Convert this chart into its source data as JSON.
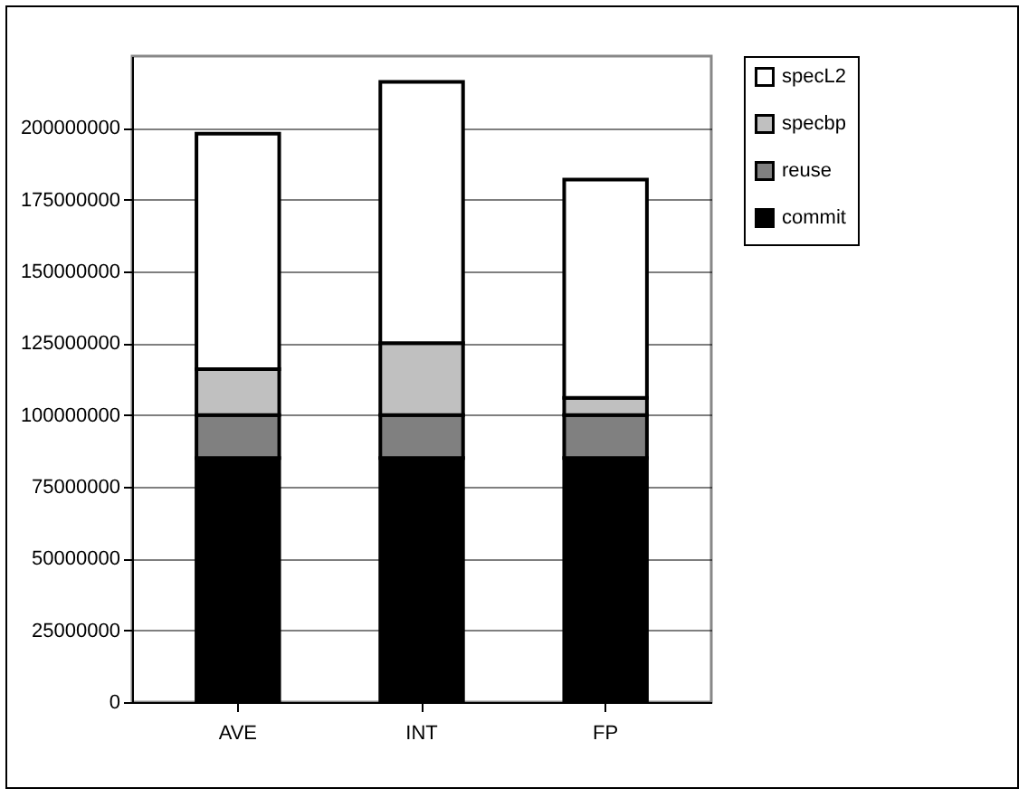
{
  "chart_data": {
    "type": "bar",
    "stacked": true,
    "categories": [
      "AVE",
      "INT",
      "FP"
    ],
    "series": [
      {
        "name": "commit",
        "color": "#000000",
        "values": [
          85000000,
          85000000,
          85000000
        ]
      },
      {
        "name": "reuse",
        "color": "#808080",
        "values": [
          15000000,
          15000000,
          15000000
        ]
      },
      {
        "name": "specbp",
        "color": "#c0c0c0",
        "values": [
          16000000,
          25000000,
          6000000
        ]
      },
      {
        "name": "specL2",
        "color": "#ffffff",
        "values": [
          82000000,
          91000000,
          76000000
        ]
      }
    ],
    "ylim": [
      0,
      225000000
    ],
    "yticks": [
      0,
      25000000,
      50000000,
      75000000,
      100000000,
      125000000,
      150000000,
      175000000,
      200000000
    ],
    "grid": "y",
    "legend": "right"
  }
}
